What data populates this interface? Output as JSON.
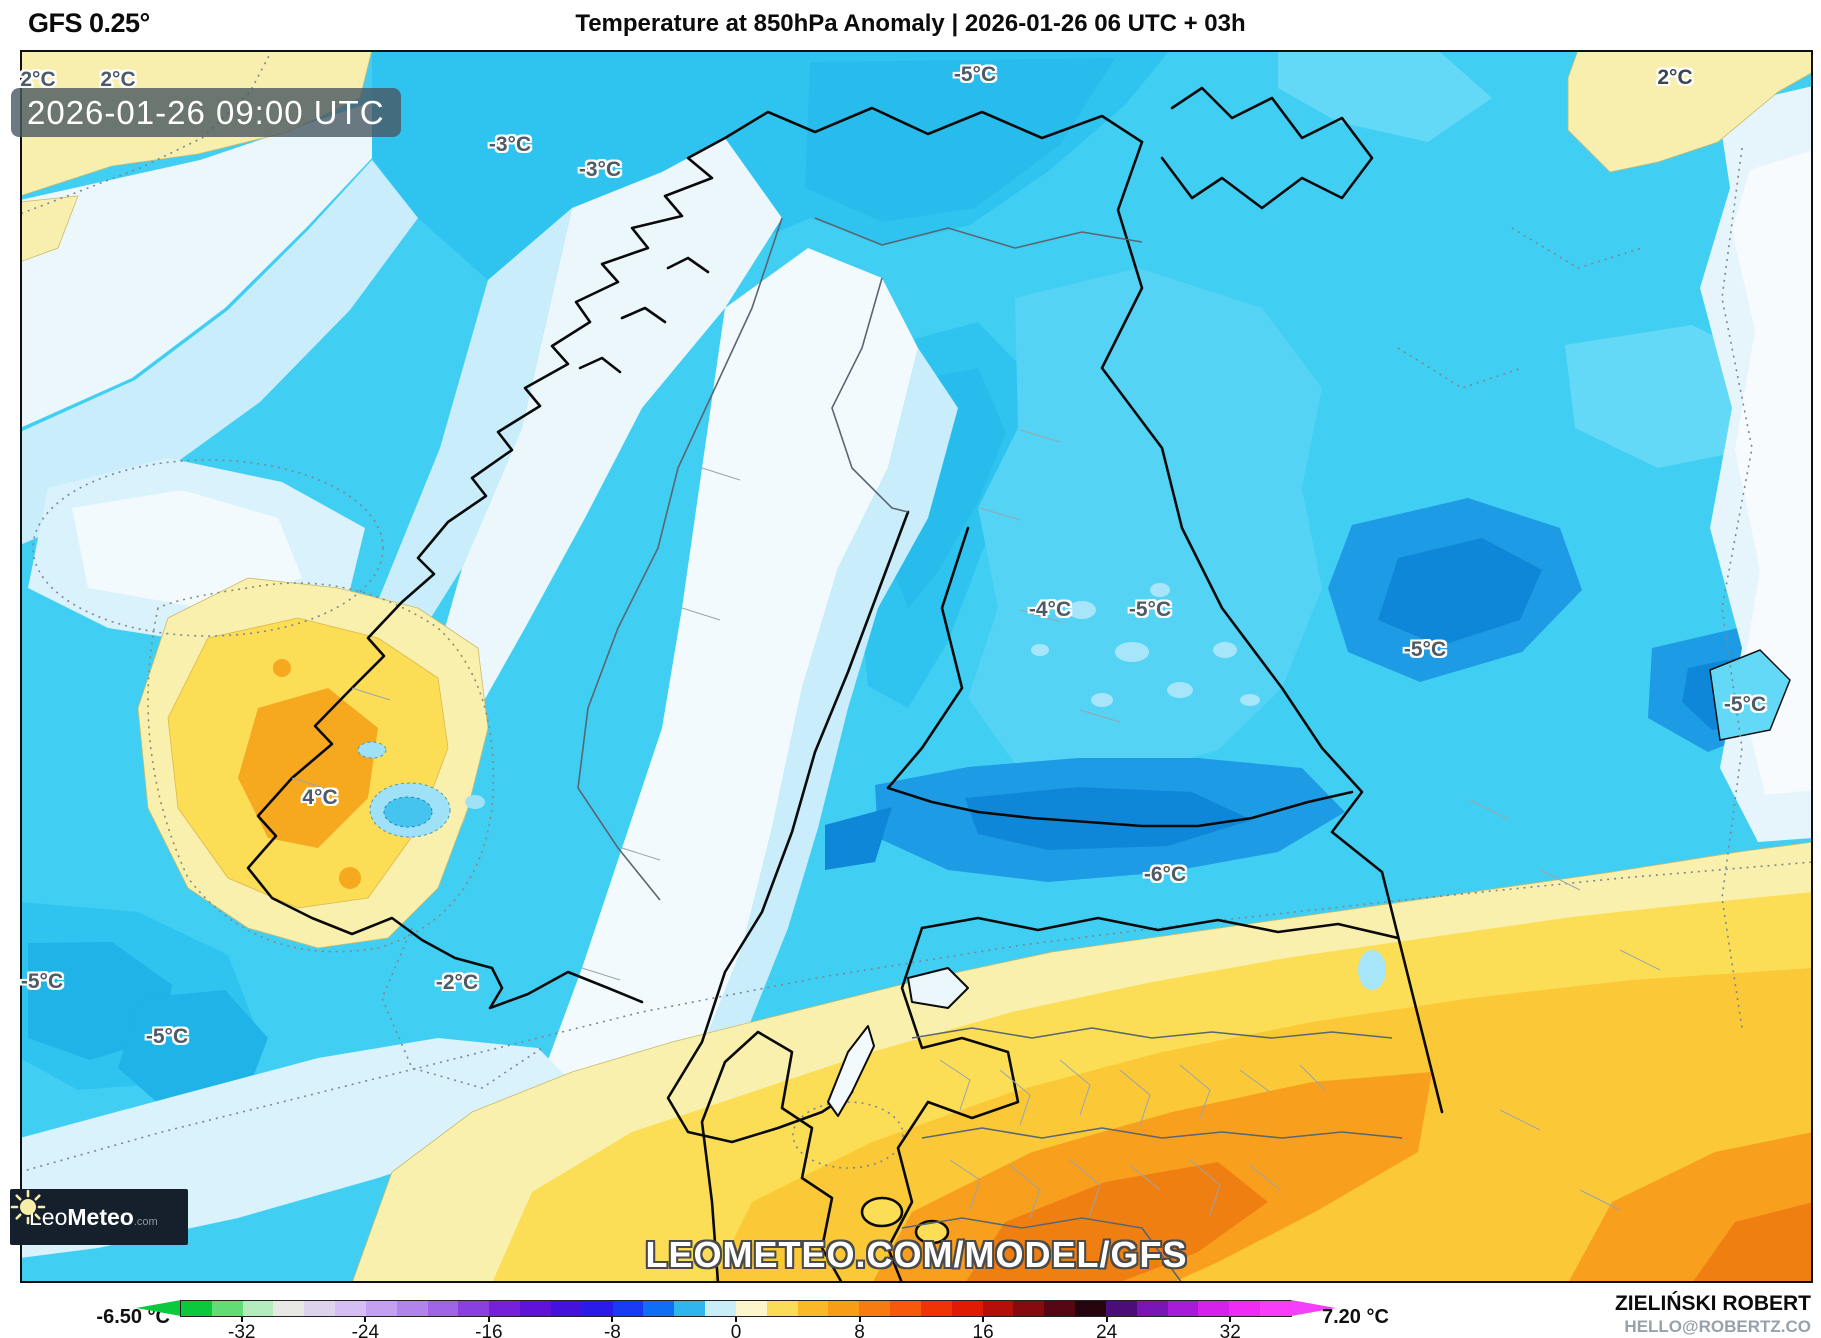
{
  "header": {
    "model_label": "GFS 0.25°",
    "title": "Temperature at 850hPa Anomaly | 2026-01-26 06 UTC + 03h"
  },
  "map": {
    "timestamp": "2026-01-26 09:00 UTC",
    "watermark": "LEOMETEO.COM/MODEL/GFS",
    "logo": {
      "prefix": "Leo",
      "brand": "Meteo",
      "suffix": ".com"
    },
    "palette": {
      "sea_cyan": "#41cef3",
      "cold_deep_blue": "#0f87d8",
      "warm_orange": "#f8a01e",
      "logo_navy": "#15202c"
    },
    "labels": [
      {
        "text": "2°C"
      },
      {
        "text": "2°C"
      },
      {
        "text": "-3°C"
      },
      {
        "text": "-3°C"
      },
      {
        "text": "-5°C"
      },
      {
        "text": "2°C"
      },
      {
        "text": "-4°C"
      },
      {
        "text": "-5°C"
      },
      {
        "text": "-5°C"
      },
      {
        "text": "-5°C"
      },
      {
        "text": "-6°C"
      },
      {
        "text": "4°C"
      },
      {
        "text": "-2°C"
      },
      {
        "text": "-5°C"
      },
      {
        "text": "-5°C"
      }
    ]
  },
  "colorbar": {
    "min_value_label": "-6.50 °C",
    "max_value_label": "7.20 °C",
    "ticks": [
      "-32",
      "-24",
      "-16",
      "-8",
      "0",
      "8",
      "16",
      "24",
      "32"
    ],
    "range": [
      -36,
      36
    ],
    "arrow_left_color": "#0cc83c",
    "arrow_right_color": "#f440fa",
    "segment_colors": [
      "#0cc83c",
      "#62dc74",
      "#b5ecbe",
      "#e8e8e4",
      "#ddd3ec",
      "#d4bef4",
      "#c3a0f0",
      "#b184eb",
      "#9f63e6",
      "#8b3fe0",
      "#7520da",
      "#5e13d6",
      "#4512db",
      "#2a1be8",
      "#173af2",
      "#0e6ff5",
      "#2fb6ef",
      "#c9eefa",
      "#fdf6cb",
      "#fbdc55",
      "#fbb928",
      "#f99c16",
      "#f87b0f",
      "#f6590a",
      "#f03305",
      "#e01b04",
      "#b50f0a",
      "#870a10",
      "#570613",
      "#26040e",
      "#4b0e78",
      "#7a15b5",
      "#a81bd8",
      "#d621ec",
      "#ee2cf6",
      "#f83cfa"
    ]
  },
  "credits": {
    "author": "ZIELIŃSKI ROBERT",
    "contact": "HELLO@ROBERTZ.CO"
  }
}
